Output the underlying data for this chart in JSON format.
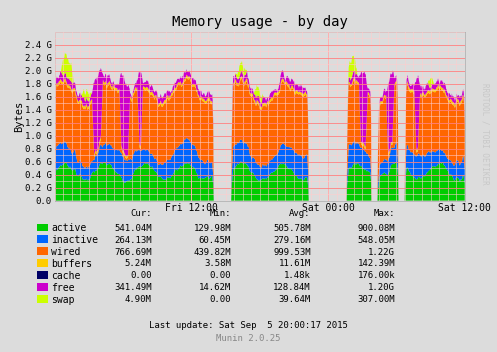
{
  "title": "Memory usage - by day",
  "ylabel": "Bytes",
  "background_color": "#DCDCDC",
  "plot_bg_color": "#DCDCDC",
  "grid_color_major": "#FF8080",
  "grid_color_minor": "#FFCCCC",
  "yticks": [
    0.0,
    0.2,
    0.4,
    0.6,
    0.8,
    1.0,
    1.2,
    1.4,
    1.6,
    1.8,
    2.0,
    2.2,
    2.4
  ],
  "ytick_labels": [
    "0.0",
    "0.2 G",
    "0.4 G",
    "0.6 G",
    "0.8 G",
    "1.0 G",
    "1.2 G",
    "1.4 G",
    "1.6 G",
    "1.8 G",
    "2.0 G",
    "2.2 G",
    "2.4 G"
  ],
  "ylim": [
    0,
    2.6
  ],
  "xtick_positions": [
    0.333,
    0.667,
    1.0
  ],
  "xtick_labels": [
    "Fri 12:00",
    "Sat 00:00",
    "Sat 12:00"
  ],
  "colors": {
    "active": "#00CC00",
    "inactive": "#0066FF",
    "wired": "#FF6600",
    "buffers": "#FFCC00",
    "cache": "#000066",
    "free": "#CC00CC",
    "swap": "#CCFF00"
  },
  "legend": {
    "active": [
      "active",
      "541.04M",
      "129.98M",
      "505.78M",
      "900.08M"
    ],
    "inactive": [
      "inactive",
      "264.13M",
      "60.45M",
      "279.16M",
      "548.05M"
    ],
    "wired": [
      "wired",
      "766.69M",
      "439.82M",
      "999.53M",
      "1.22G"
    ],
    "buffers": [
      "buffers",
      "5.24M",
      "3.58M",
      "11.61M",
      "142.39M"
    ],
    "cache": [
      "cache",
      "0.00",
      "0.00",
      "1.48k",
      "176.00k"
    ],
    "free": [
      "free",
      "341.49M",
      "14.62M",
      "128.84M",
      "1.20G"
    ],
    "swap": [
      "swap",
      "4.90M",
      "0.00",
      "39.64M",
      "307.00M"
    ]
  },
  "last_update": "Last update: Sat Sep  5 20:00:17 2015",
  "munin_version": "Munin 2.0.25",
  "watermark": "RRDTOOL / TOBI OETIKER"
}
